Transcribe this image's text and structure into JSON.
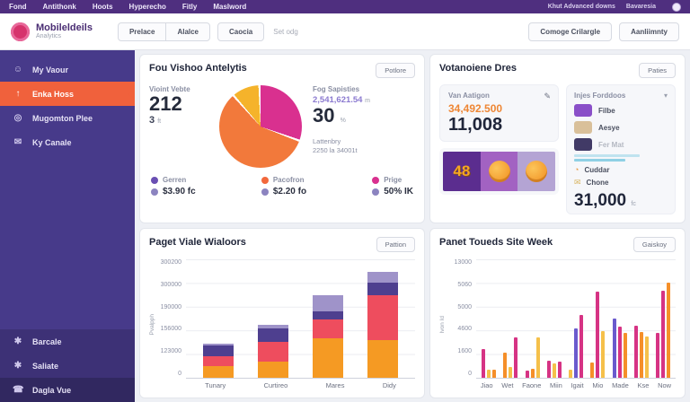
{
  "topbar": {
    "nav": [
      "Fond",
      "Antithonk",
      "Hoots",
      "Hyperecho",
      "Fitly",
      "Maslword"
    ],
    "right_links": [
      "Khut Advanced downs",
      "Bavaresia"
    ]
  },
  "header": {
    "brand": {
      "title": "Mobileldeils",
      "subtitle": "Analytics"
    },
    "segmented": [
      "Prelace",
      "Alalce"
    ],
    "single_button": "Caocia",
    "hint": "Set odg",
    "right_buttons": [
      "Comoge Crilargle",
      "Aanliimnty"
    ]
  },
  "sidebar": {
    "items_top": [
      {
        "label": "My Vaour",
        "icon": "user-icon",
        "glyph": "☺",
        "active": false
      },
      {
        "label": "Enka Hoss",
        "icon": "arrow-up-icon",
        "glyph": "↑",
        "active": true
      },
      {
        "label": "Mugomton Plee",
        "icon": "eye-icon",
        "glyph": "◎",
        "active": false
      },
      {
        "label": "Ky Canale",
        "icon": "chat-icon",
        "glyph": "✉",
        "active": false
      }
    ],
    "items_bottom": [
      {
        "label": "Barcale",
        "icon": "puzzle-icon",
        "glyph": "✱",
        "shade": true
      },
      {
        "label": "Saliate",
        "icon": "puzzle-icon",
        "glyph": "✱",
        "shade": true
      },
      {
        "label": "Dagla Vue",
        "icon": "phone-icon",
        "glyph": "☎",
        "dark": true
      }
    ]
  },
  "cards": {
    "visitor_analytics": {
      "title": "Fou Vishoo Antelytis",
      "action": "Potlore",
      "left": {
        "label": "Vioint Vebte",
        "value": "212",
        "sub": "3",
        "sub_unit": "ft"
      },
      "right": {
        "label": "Fog Sapisties",
        "highlight": "2,541,621.54",
        "highlight_unit": "m",
        "value": "30",
        "value_unit": "%",
        "note_line1": "Lattenbry",
        "note_line2": "2250 la 34001t"
      },
      "legend": [
        {
          "name": "Gerren",
          "color": "#6a4fb3",
          "value": "$3.90 fc"
        },
        {
          "name": "Pacofron",
          "color": "#f2683c",
          "value": "$2.20 fo"
        },
        {
          "name": "Prige",
          "color": "#d9308f",
          "value": "50% IK"
        }
      ],
      "value_dot_color": "#8c84c0"
    },
    "audience": {
      "title": "Votanoiene Dres",
      "action": "Paties",
      "stat": {
        "label": "Van Aatigon",
        "highlight": "34,492.500",
        "value": "11,008"
      },
      "banner": {
        "number": "48"
      },
      "panel": {
        "title": "Injes Forddoos",
        "items": [
          {
            "label": "Filbe",
            "thumb": "#8a4fc8"
          },
          {
            "label": "Aesye",
            "thumb": "#d9c09a"
          },
          {
            "label": "Fer Mat",
            "thumb": "#413a66",
            "muted": true
          }
        ],
        "rows": [
          {
            "label": "Cuddar",
            "glyph": "◔",
            "icon": "coin-icon",
            "color": "#e8973c"
          },
          {
            "label": "Chone",
            "glyph": "✉",
            "icon": "mail-icon",
            "color": "#d8b45e"
          }
        ],
        "total": "31,000",
        "total_unit": "fc"
      }
    }
  },
  "chart_data": [
    {
      "id": "pie",
      "type": "pie",
      "title": "Fou Vishoo Antelytis",
      "slices": [
        {
          "name": "Prige",
          "color": "#d9308f",
          "pct": 31
        },
        {
          "name": "Pacofron",
          "color": "#f2793b",
          "pct": 58
        },
        {
          "name": "Gerren",
          "color": "#f5b32b",
          "pct": 11
        }
      ]
    },
    {
      "id": "page_visits",
      "type": "bar",
      "title": "Paget Viale Wialoors",
      "action": "Pattion",
      "ylabel": "Pvalpph",
      "yticks": [
        "300200",
        "300000",
        "190000",
        "156000",
        "123000",
        "0"
      ],
      "ymax": 310000,
      "categories": [
        "Tunary",
        "Curtireo",
        "Mares",
        "Didy"
      ],
      "stack_colors": [
        "#f59a23",
        "#ee4d5e",
        "#4e3f8f",
        "#9f93c9"
      ],
      "series_note": "stacked bottom-to-top: orange, red, dark-purple, light-purple",
      "bars": [
        [
          31000,
          26000,
          28000,
          4000
        ],
        [
          42000,
          52000,
          36000,
          9000
        ],
        [
          103000,
          50000,
          22000,
          42000
        ],
        [
          98000,
          118000,
          33000,
          29000
        ]
      ]
    },
    {
      "id": "site_week",
      "type": "bar",
      "title": "Panet Toueds Site Week",
      "action": "Gaiskoy",
      "ylabel": "Ivon Id",
      "yticks": [
        "13000",
        "5060",
        "5000",
        "4600",
        "1600",
        "0"
      ],
      "ymax": 13500,
      "categories": [
        "Jiao",
        "Wet",
        "Faone",
        "Miin",
        "Igait",
        "Mio",
        "Made",
        "Kse",
        "Now"
      ],
      "palette": {
        "pink": "#d63384",
        "yellow": "#f5c04a",
        "orange": "#f58f29",
        "purple": "#6a5acd"
      },
      "groups": [
        [
          [
            "pink",
            3300
          ],
          [
            "yellow",
            950
          ],
          [
            "orange",
            950
          ]
        ],
        [
          [
            "orange",
            2900
          ],
          [
            "yellow",
            1200
          ],
          [
            "pink",
            4600
          ]
        ],
        [
          [
            "pink",
            800
          ],
          [
            "orange",
            1050
          ],
          [
            "yellow",
            4600
          ]
        ],
        [
          [
            "pink",
            1900
          ],
          [
            "yellow",
            1600
          ],
          [
            "pink",
            1850
          ]
        ],
        [
          [
            "yellow",
            900
          ],
          [
            "purple",
            5600
          ],
          [
            "pink",
            7200
          ]
        ],
        [
          [
            "orange",
            1700
          ],
          [
            "pink",
            9800
          ],
          [
            "yellow",
            5300
          ]
        ],
        [
          [
            "purple",
            6800
          ],
          [
            "pink",
            5800
          ],
          [
            "orange",
            5100
          ]
        ],
        [
          [
            "pink",
            5900
          ],
          [
            "orange",
            5200
          ],
          [
            "yellow",
            4700
          ]
        ],
        [
          [
            "pink",
            5100
          ],
          [
            "pink",
            9900
          ],
          [
            "orange",
            10800
          ]
        ]
      ]
    }
  ]
}
